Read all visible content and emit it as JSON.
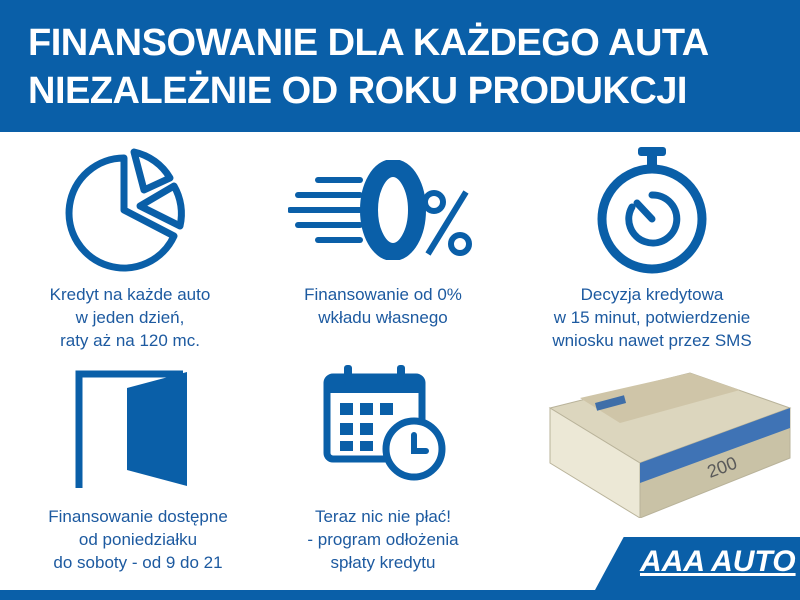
{
  "header": {
    "line1": "FINANSOWANIE DLA KAŻDEGO AUTA",
    "line2": "NIEZALEŻNIE OD ROKU PRODUKCJI"
  },
  "features": [
    {
      "icon": "pie-chart-icon",
      "lines": [
        "Kredyt na każde auto",
        "w jeden dzień,",
        "raty aż na 120 mc."
      ]
    },
    {
      "icon": "zero-percent-icon",
      "icon_text": "0%",
      "lines": [
        "Finansowanie od 0%",
        "wkładu własnego"
      ]
    },
    {
      "icon": "stopwatch-icon",
      "lines": [
        "Decyzja kredytowa",
        "w 15 minut, potwierdzenie",
        "wniosku nawet przez SMS"
      ]
    },
    {
      "icon": "door-icon",
      "lines": [
        "Finansowanie dostępne",
        "od poniedziałku",
        "do soboty - od 9 do 21"
      ]
    },
    {
      "icon": "calendar-clock-icon",
      "lines": [
        "Teraz nic nie płać!",
        "- program odłożenia",
        "spłaty kredytu"
      ]
    }
  ],
  "money_image": {
    "icon": "banknotes-stack-icon",
    "note_value": "200"
  },
  "brand": {
    "logo_text": "AAA AUTO",
    "color": "#0a5fa8"
  }
}
